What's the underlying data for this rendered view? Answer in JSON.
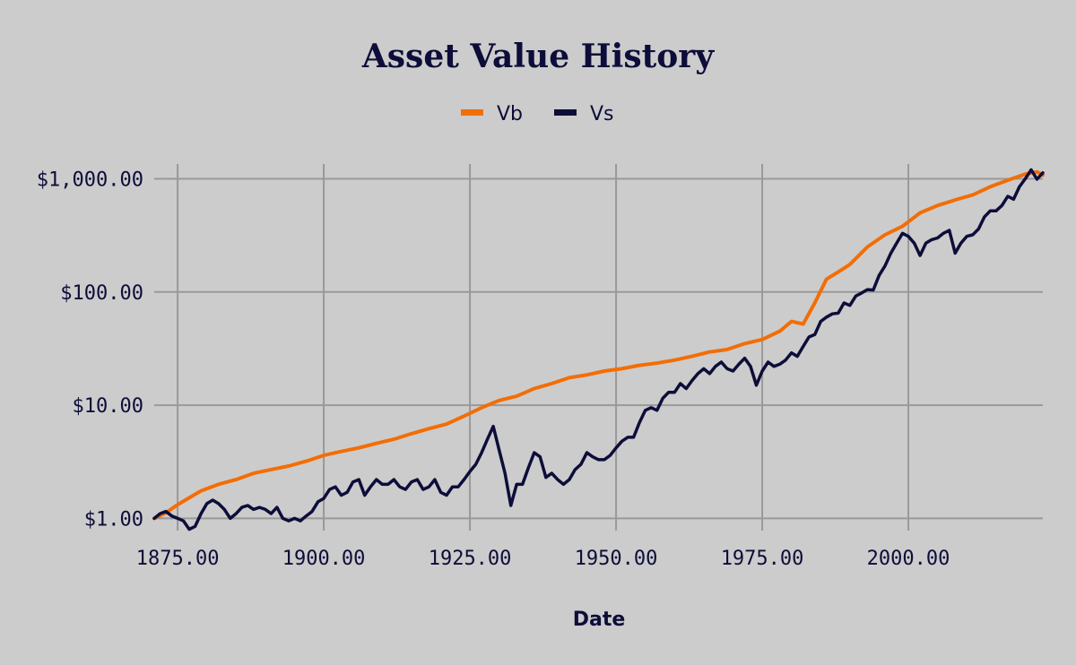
{
  "chart_data": {
    "type": "line",
    "title": "Asset Value History",
    "xlabel": "Date",
    "ylabel": "",
    "legend_position": "top-center",
    "grid": true,
    "y_scale": "log",
    "xlim": [
      1871,
      2023
    ],
    "ylim": [
      0.78,
      1350
    ],
    "x_ticks": [
      1875,
      1900,
      1925,
      1950,
      1975,
      2000
    ],
    "x_tick_labels": [
      "1875.00",
      "1900.00",
      "1925.00",
      "1950.00",
      "1975.00",
      "2000.00"
    ],
    "y_ticks": [
      1,
      10,
      100,
      1000
    ],
    "y_tick_labels": [
      "$1.00",
      "$10.00",
      "$100.00",
      "$1,000.00"
    ],
    "colors": {
      "background": "#cccccc",
      "text": "#0d0d3a",
      "grid": "#999999"
    },
    "series": [
      {
        "name": "Vb",
        "color": "#f26e06",
        "x": [
          1871,
          1873,
          1875,
          1877,
          1879,
          1882,
          1885,
          1888,
          1891,
          1894,
          1897,
          1900,
          1903,
          1906,
          1909,
          1912,
          1915,
          1918,
          1921,
          1924,
          1927,
          1930,
          1933,
          1936,
          1939,
          1942,
          1945,
          1948,
          1951,
          1954,
          1957,
          1960,
          1963,
          1966,
          1969,
          1972,
          1975,
          1978,
          1980,
          1982,
          1984,
          1986,
          1988,
          1990,
          1993,
          1996,
          1999,
          2002,
          2005,
          2008,
          2011,
          2014,
          2017,
          2020,
          2022,
          2023
        ],
        "values": [
          1.0,
          1.12,
          1.32,
          1.52,
          1.75,
          2.0,
          2.2,
          2.5,
          2.7,
          2.9,
          3.2,
          3.6,
          3.9,
          4.2,
          4.6,
          5.0,
          5.6,
          6.2,
          6.8,
          8.0,
          9.5,
          11.0,
          12.0,
          14.0,
          15.5,
          17.5,
          18.5,
          20.0,
          21.0,
          22.5,
          23.5,
          25.0,
          27.0,
          29.5,
          31.0,
          35.0,
          38.0,
          45.0,
          55.0,
          52.0,
          80.0,
          130.0,
          150.0,
          175.0,
          250.0,
          320.0,
          380.0,
          500.0,
          580.0,
          650.0,
          720.0,
          850.0,
          970.0,
          1100.0,
          1150.0,
          1080.0
        ]
      },
      {
        "name": "Vs",
        "color": "#0d0d3a",
        "x": [
          1871,
          1872,
          1873,
          1874,
          1875,
          1876,
          1877,
          1878,
          1879,
          1880,
          1881,
          1882,
          1883,
          1884,
          1885,
          1886,
          1887,
          1888,
          1889,
          1890,
          1891,
          1892,
          1893,
          1894,
          1895,
          1896,
          1897,
          1898,
          1899,
          1900,
          1901,
          1902,
          1903,
          1904,
          1905,
          1906,
          1907,
          1908,
          1909,
          1910,
          1911,
          1912,
          1913,
          1914,
          1915,
          1916,
          1917,
          1918,
          1919,
          1920,
          1921,
          1922,
          1923,
          1924,
          1925,
          1926,
          1927,
          1928,
          1929,
          1930,
          1931,
          1932,
          1933,
          1934,
          1935,
          1936,
          1937,
          1938,
          1939,
          1940,
          1941,
          1942,
          1943,
          1944,
          1945,
          1946,
          1947,
          1948,
          1949,
          1950,
          1951,
          1952,
          1953,
          1954,
          1955,
          1956,
          1957,
          1958,
          1959,
          1960,
          1961,
          1962,
          1963,
          1964,
          1965,
          1966,
          1967,
          1968,
          1969,
          1970,
          1971,
          1972,
          1973,
          1974,
          1975,
          1976,
          1977,
          1978,
          1979,
          1980,
          1981,
          1982,
          1983,
          1984,
          1985,
          1986,
          1987,
          1988,
          1989,
          1990,
          1991,
          1992,
          1993,
          1994,
          1995,
          1996,
          1997,
          1998,
          1999,
          2000,
          2001,
          2002,
          2003,
          2004,
          2005,
          2006,
          2007,
          2008,
          2009,
          2010,
          2011,
          2012,
          2013,
          2014,
          2015,
          2016,
          2017,
          2018,
          2019,
          2020,
          2021,
          2022,
          2023
        ],
        "values": [
          1.0,
          1.1,
          1.15,
          1.05,
          1.0,
          0.95,
          0.8,
          0.85,
          1.1,
          1.35,
          1.45,
          1.35,
          1.2,
          1.0,
          1.1,
          1.25,
          1.3,
          1.2,
          1.25,
          1.2,
          1.1,
          1.25,
          1.0,
          0.95,
          1.0,
          0.95,
          1.05,
          1.15,
          1.4,
          1.5,
          1.8,
          1.9,
          1.6,
          1.7,
          2.1,
          2.2,
          1.6,
          1.9,
          2.2,
          2.0,
          2.0,
          2.2,
          1.9,
          1.8,
          2.1,
          2.2,
          1.8,
          1.9,
          2.2,
          1.7,
          1.6,
          1.9,
          1.9,
          2.2,
          2.6,
          3.0,
          3.8,
          5.0,
          6.5,
          4.0,
          2.5,
          1.3,
          2.0,
          2.0,
          2.8,
          3.8,
          3.5,
          2.3,
          2.5,
          2.2,
          2.0,
          2.2,
          2.7,
          3.0,
          3.8,
          3.5,
          3.3,
          3.3,
          3.6,
          4.2,
          4.8,
          5.2,
          5.2,
          7.0,
          9.0,
          9.5,
          9.0,
          11.5,
          13.0,
          13.0,
          15.5,
          14.0,
          16.5,
          19.0,
          21.0,
          19.0,
          22.0,
          24.0,
          21.0,
          20.0,
          23.0,
          26.0,
          22.0,
          15.0,
          20.0,
          24.0,
          22.0,
          23.0,
          25.0,
          29.0,
          27.0,
          33.0,
          40.0,
          42.0,
          55.0,
          60.0,
          64.0,
          65.0,
          80.0,
          76.0,
          92.0,
          98.0,
          105.0,
          104.0,
          140.0,
          170.0,
          220.0,
          270.0,
          330.0,
          310.0,
          270.0,
          210.0,
          270.0,
          290.0,
          300.0,
          330.0,
          350.0,
          220.0,
          270.0,
          310.0,
          320.0,
          360.0,
          460.0,
          520.0,
          520.0,
          580.0,
          700.0,
          660.0,
          850.0,
          1000.0,
          1200.0,
          990.0,
          1130.0
        ]
      }
    ]
  }
}
